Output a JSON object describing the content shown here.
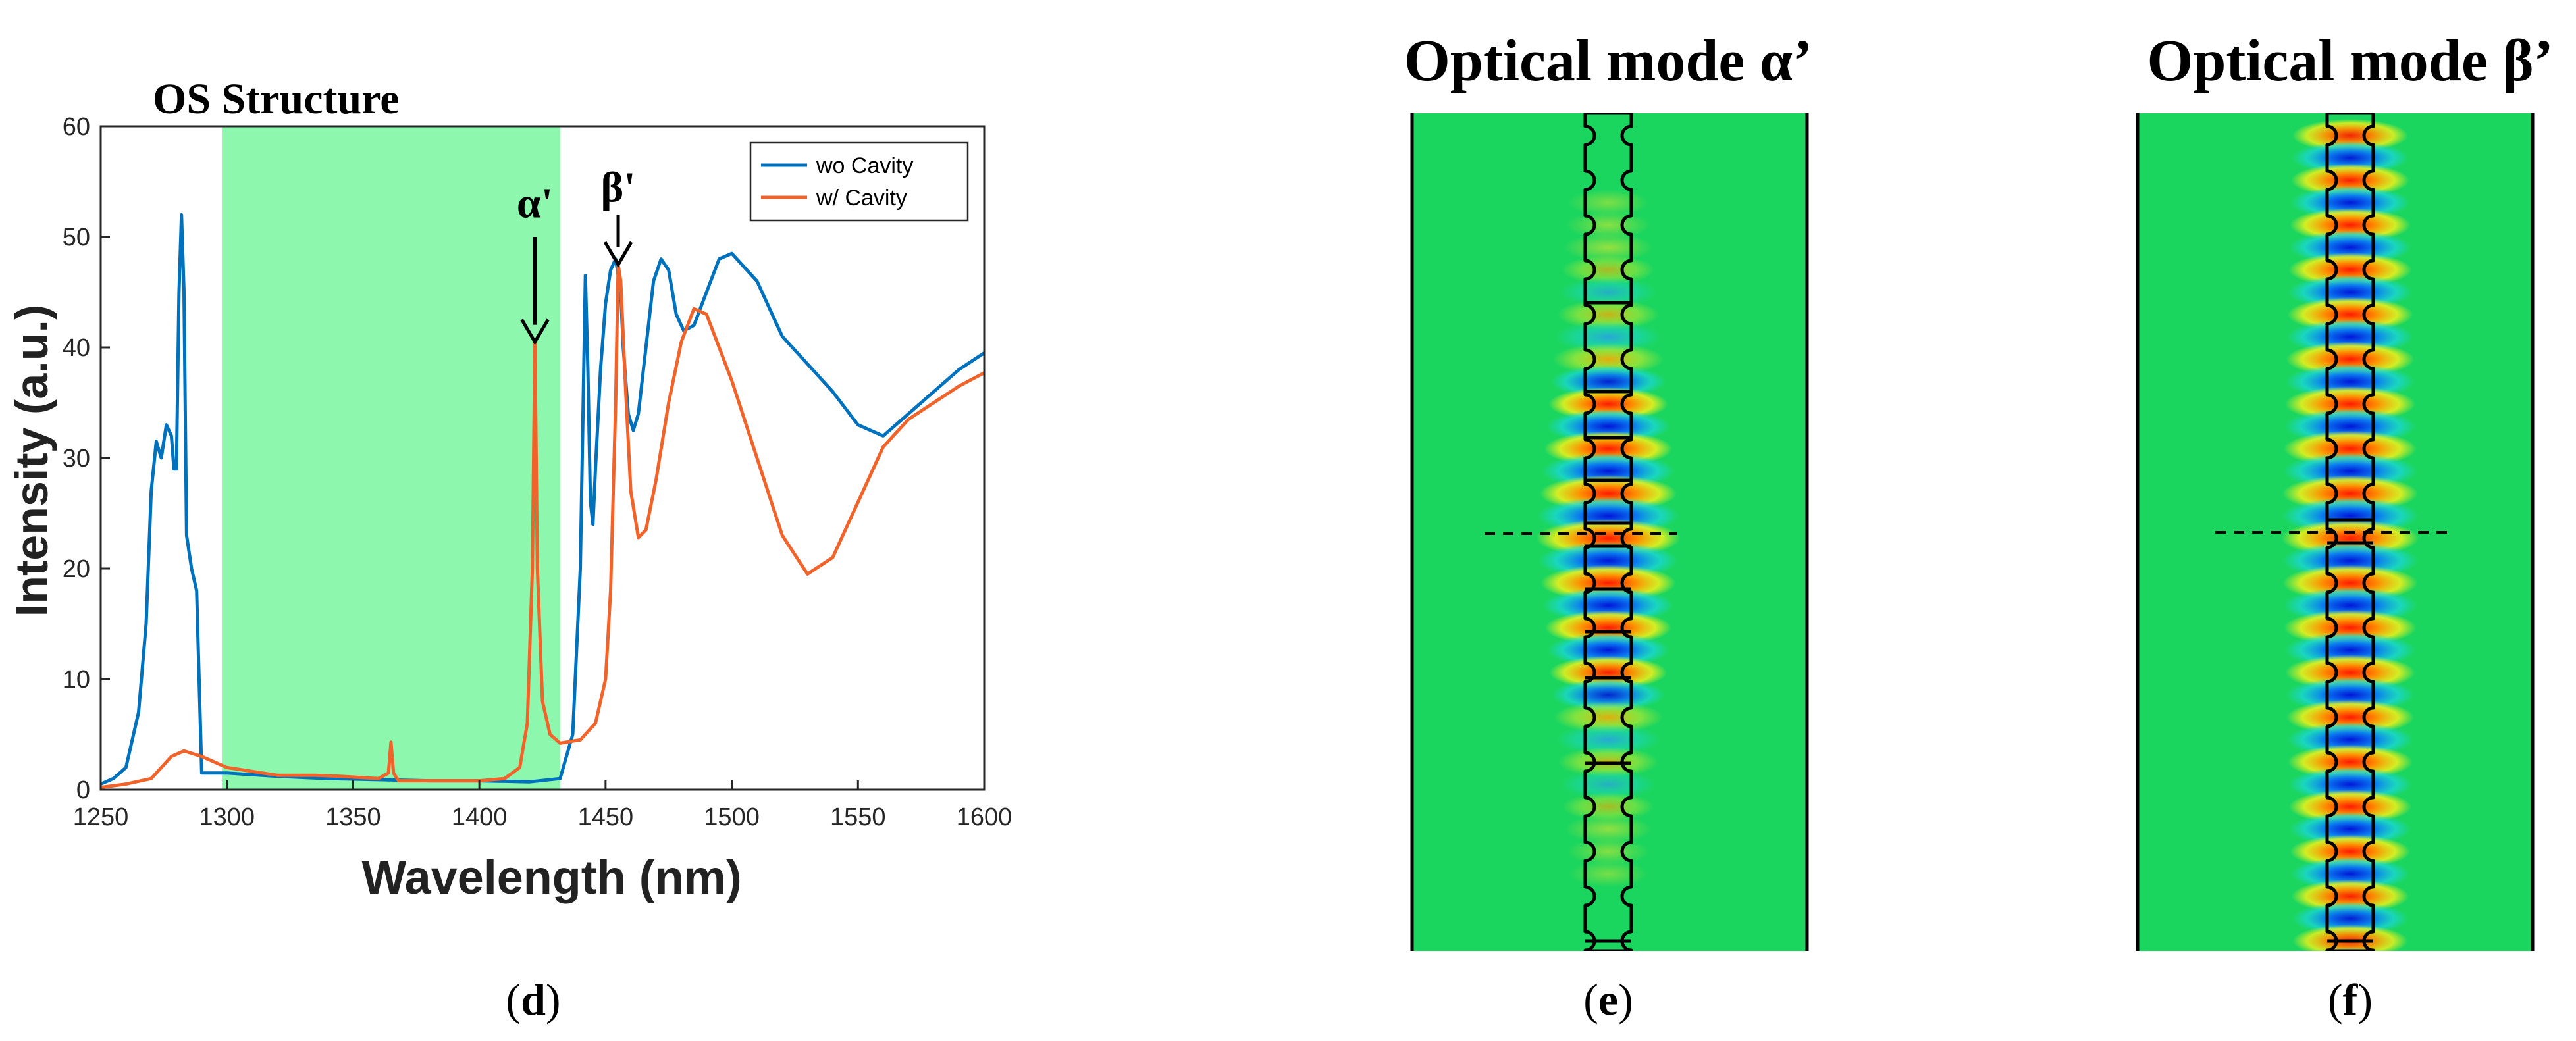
{
  "panels": {
    "d": {
      "label_open": "(",
      "label_letter": "d",
      "label_close": ")"
    },
    "e": {
      "title": "Optical mode α’",
      "label_open": "(",
      "label_letter": "e",
      "label_close": ")"
    },
    "f": {
      "title": "Optical mode β’",
      "label_open": "(",
      "label_letter": "f",
      "label_close": ")"
    }
  },
  "chart_data": {
    "type": "line",
    "title": "OS Structure",
    "xlabel": "Wavelength (nm)",
    "ylabel": "Intensity (a.u.)",
    "xlim": [
      1250,
      1600
    ],
    "ylim": [
      0,
      60
    ],
    "x_ticks": [
      1250,
      1300,
      1350,
      1400,
      1450,
      1500,
      1550,
      1600
    ],
    "y_ticks": [
      0,
      10,
      20,
      30,
      40,
      50,
      60
    ],
    "highlight_band": {
      "x_start": 1298,
      "x_end": 1432,
      "color": "#8df7ad"
    },
    "annotations": [
      {
        "text": "α'",
        "x": 1422,
        "y_text": 52,
        "y_arrow_start": 50,
        "y_arrow_end": 40.5
      },
      {
        "text": "β'",
        "x": 1455,
        "y_text": 52,
        "y_arrow_start": 52,
        "y_arrow_end": 47.5
      }
    ],
    "legend_position": "top-right",
    "series": [
      {
        "name": "wo Cavity",
        "color": "#0072bd",
        "points": [
          [
            1250,
            0.5
          ],
          [
            1255,
            1
          ],
          [
            1260,
            2
          ],
          [
            1265,
            7
          ],
          [
            1268,
            15
          ],
          [
            1270,
            27
          ],
          [
            1272,
            31.5
          ],
          [
            1274,
            30
          ],
          [
            1276,
            33
          ],
          [
            1278,
            32
          ],
          [
            1279,
            29
          ],
          [
            1280,
            29
          ],
          [
            1281,
            45
          ],
          [
            1282,
            52
          ],
          [
            1283,
            45
          ],
          [
            1284,
            23
          ],
          [
            1286,
            20
          ],
          [
            1288,
            18
          ],
          [
            1290,
            1.5
          ],
          [
            1295,
            1.5
          ],
          [
            1300,
            1.5
          ],
          [
            1320,
            1.2
          ],
          [
            1340,
            1
          ],
          [
            1360,
            0.9
          ],
          [
            1380,
            0.8
          ],
          [
            1400,
            0.8
          ],
          [
            1420,
            0.7
          ],
          [
            1432,
            1
          ],
          [
            1437,
            5
          ],
          [
            1440,
            20
          ],
          [
            1442,
            46.5
          ],
          [
            1443,
            38
          ],
          [
            1444,
            26
          ],
          [
            1445,
            24
          ],
          [
            1446,
            29
          ],
          [
            1448,
            38
          ],
          [
            1450,
            44
          ],
          [
            1452,
            47
          ],
          [
            1454,
            48
          ],
          [
            1456,
            45
          ],
          [
            1457,
            40
          ],
          [
            1459,
            34
          ],
          [
            1461,
            32.5
          ],
          [
            1463,
            34
          ],
          [
            1466,
            40
          ],
          [
            1469,
            46
          ],
          [
            1472,
            48
          ],
          [
            1475,
            47
          ],
          [
            1478,
            43
          ],
          [
            1481,
            41.5
          ],
          [
            1485,
            42
          ],
          [
            1490,
            45
          ],
          [
            1495,
            48
          ],
          [
            1500,
            48.5
          ],
          [
            1510,
            46
          ],
          [
            1520,
            41
          ],
          [
            1530,
            38.5
          ],
          [
            1540,
            36
          ],
          [
            1550,
            33
          ],
          [
            1560,
            32
          ],
          [
            1570,
            34
          ],
          [
            1580,
            36
          ],
          [
            1590,
            38
          ],
          [
            1600,
            39.5
          ]
        ]
      },
      {
        "name": "w/ Cavity",
        "color": "#f0642b",
        "points": [
          [
            1250,
            0.2
          ],
          [
            1260,
            0.5
          ],
          [
            1270,
            1
          ],
          [
            1278,
            3
          ],
          [
            1283,
            3.5
          ],
          [
            1290,
            3
          ],
          [
            1300,
            2
          ],
          [
            1320,
            1.3
          ],
          [
            1335,
            1.3
          ],
          [
            1345,
            1.2
          ],
          [
            1360,
            1
          ],
          [
            1364,
            1.5
          ],
          [
            1365,
            4.3
          ],
          [
            1366,
            1.5
          ],
          [
            1368,
            0.8
          ],
          [
            1380,
            0.8
          ],
          [
            1400,
            0.8
          ],
          [
            1410,
            1
          ],
          [
            1416,
            2
          ],
          [
            1419,
            6
          ],
          [
            1421,
            20
          ],
          [
            1422,
            40.5
          ],
          [
            1423,
            20
          ],
          [
            1425,
            8
          ],
          [
            1428,
            5
          ],
          [
            1432,
            4.2
          ],
          [
            1440,
            4.5
          ],
          [
            1446,
            6
          ],
          [
            1450,
            10
          ],
          [
            1452,
            18
          ],
          [
            1454,
            35
          ],
          [
            1455,
            47.5
          ],
          [
            1456,
            46
          ],
          [
            1458,
            36
          ],
          [
            1460,
            27
          ],
          [
            1463,
            22.8
          ],
          [
            1466,
            23.5
          ],
          [
            1470,
            28
          ],
          [
            1475,
            35
          ],
          [
            1480,
            40.5
          ],
          [
            1485,
            43.5
          ],
          [
            1490,
            43
          ],
          [
            1495,
            40
          ],
          [
            1500,
            37
          ],
          [
            1510,
            30
          ],
          [
            1520,
            23
          ],
          [
            1530,
            19.5
          ],
          [
            1540,
            21
          ],
          [
            1550,
            26
          ],
          [
            1560,
            31
          ],
          [
            1570,
            33.5
          ],
          [
            1580,
            35
          ],
          [
            1590,
            36.5
          ],
          [
            1600,
            37.7
          ]
        ]
      }
    ]
  }
}
